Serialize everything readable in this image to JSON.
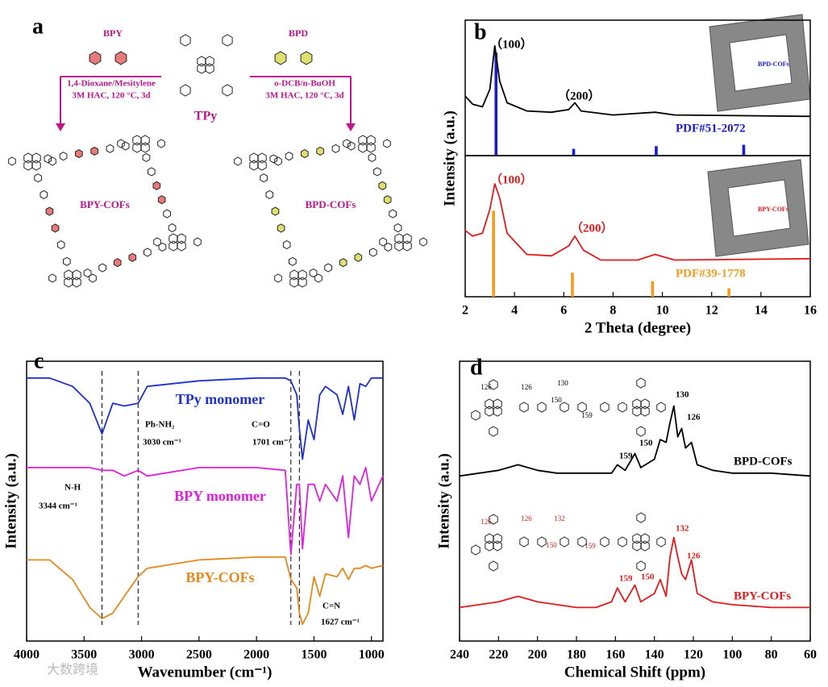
{
  "panels": [
    "a",
    "b",
    "c",
    "d"
  ],
  "scheme": {
    "reagent_left": "BPY",
    "reagent_right": "BPD",
    "center": "TPy",
    "left_conditions": [
      "1,4-Dioxane/Mesitylene",
      "3M HAC, 120 °C, 3d"
    ],
    "right_conditions": [
      "o-DCB/n-BuOH",
      "3M HAC, 120 °C, 3d"
    ],
    "left_product": "BPY-COFs",
    "right_product": "BPD-COFs"
  },
  "watermark": "大数跨境",
  "chart_data": [
    {
      "type": "line",
      "xlim": [
        2,
        16
      ],
      "ylim": [
        0,
        100
      ],
      "x": [
        2,
        2.3,
        2.7,
        3,
        3.2,
        3.4,
        3.7,
        4.5,
        5.5,
        6.2,
        6.45,
        6.7,
        8,
        9.7,
        10.5,
        16
      ],
      "series": [
        {
          "color": "#000000",
          "values": [
            44,
            38,
            36,
            49,
            81,
            55,
            39,
            33,
            32,
            34,
            39,
            33,
            30,
            32,
            30,
            29
          ]
        }
      ],
      "sticks": {
        "color": "#1a1ad6",
        "x": [
          3.25,
          6.4,
          9.75,
          13.3
        ],
        "values": [
          76,
          5,
          7,
          8
        ]
      },
      "annotations": [
        {
          "text": "（100）",
          "color": "#000000"
        },
        {
          "text": "（200）",
          "color": "#000000"
        },
        {
          "text": "PDF#51-2072",
          "color": "#1a1ad6"
        },
        {
          "text": "BPD-COFs",
          "color": "#1a1ad6"
        }
      ]
    },
    {
      "type": "line",
      "xlim": [
        2,
        16
      ],
      "ylim": [
        0,
        100
      ],
      "xticks": [
        2,
        4,
        6,
        8,
        10,
        12,
        14,
        16
      ],
      "xlabel": "2 Theta (degree)",
      "ylabel": "Intensity (a.u.)",
      "x": [
        2,
        2.3,
        2.7,
        3,
        3.2,
        3.4,
        3.7,
        4.5,
        5.5,
        6.2,
        6.45,
        6.8,
        7.5,
        9,
        9.7,
        10.5,
        16
      ],
      "series": [
        {
          "color": "#e31a1c",
          "values": [
            47,
            43,
            45,
            62,
            80,
            70,
            45,
            30,
            29,
            36,
            43,
            33,
            26,
            26,
            30,
            26,
            27
          ]
        }
      ],
      "sticks": {
        "color": "#f39c1e",
        "x": [
          3.15,
          6.35,
          9.6,
          12.7
        ],
        "values": [
          61,
          17,
          11,
          6
        ]
      },
      "annotations": [
        {
          "text": "（100）",
          "color": "#e31a1c"
        },
        {
          "text": "（200）",
          "color": "#e31a1c"
        },
        {
          "text": "PDF#39-1778",
          "color": "#f39c1e"
        },
        {
          "text": "BPY-COFs",
          "color": "#e31a1c"
        }
      ]
    },
    {
      "type": "line",
      "xlim": [
        4000,
        900
      ],
      "ylim": [
        0,
        100
      ],
      "xticks": [
        4000,
        3500,
        3000,
        2500,
        2000,
        1500,
        1000
      ],
      "xlabel": "Wavenumber (cm⁻¹)",
      "ylabel": "Intensity (a.u.)",
      "markers": [
        3344,
        3030,
        1701,
        1627
      ],
      "x": [
        4000,
        3800,
        3600,
        3450,
        3344,
        3250,
        3150,
        3030,
        2950,
        2500,
        2000,
        1750,
        1701,
        1650,
        1627,
        1600,
        1550,
        1500,
        1450,
        1400,
        1300,
        1250,
        1200,
        1150,
        1100,
        1050,
        1000,
        900
      ],
      "series": [
        {
          "color": "#1f2fd0",
          "values": [
            94,
            94,
            91,
            85,
            74,
            85,
            84,
            85,
            91,
            93,
            94,
            94,
            93,
            88,
            76,
            65,
            79,
            72,
            88,
            91,
            88,
            81,
            91,
            79,
            92,
            91,
            94,
            94
          ]
        },
        {
          "color": "#e020e0",
          "values": [
            62,
            62,
            62,
            62,
            61,
            61,
            59,
            61,
            59,
            62,
            62,
            61,
            31,
            56,
            56,
            33,
            56,
            56,
            50,
            56,
            50,
            59,
            37,
            59,
            56,
            62,
            50,
            59
          ]
        },
        {
          "color": "#e8881c",
          "values": [
            29,
            29,
            22,
            12,
            8,
            10,
            16,
            23,
            26,
            29,
            30,
            30,
            22,
            19,
            10,
            6,
            10,
            23,
            16,
            24,
            23,
            26,
            22,
            26,
            26,
            27,
            26,
            27
          ]
        }
      ],
      "annotations": [
        {
          "text": "TPy monomer",
          "color": "#1f2fd0"
        },
        {
          "text": "BPY monomer",
          "color": "#e020e0"
        },
        {
          "text": "BPY-COFs",
          "color": "#e8881c"
        },
        {
          "text": "N-H",
          "color": "#000000"
        },
        {
          "text": "3344 cm⁻¹",
          "color": "#000000"
        },
        {
          "text": "Ph-NH₂",
          "color": "#000000"
        },
        {
          "text": "3030 cm⁻¹",
          "color": "#000000"
        },
        {
          "text": "C=O",
          "color": "#000000"
        },
        {
          "text": "1701 cm⁻¹",
          "color": "#000000"
        },
        {
          "text": "C=N",
          "color": "#000000"
        },
        {
          "text": "1627 cm⁻¹",
          "color": "#000000"
        }
      ]
    },
    {
      "type": "line",
      "xlim": [
        240,
        60
      ],
      "ylim": [
        0,
        100
      ],
      "xticks": [
        240,
        220,
        200,
        180,
        160,
        140,
        120,
        100,
        80,
        60
      ],
      "xlabel": "Chemical Shift (ppm)",
      "ylabel": "Intensity (a.u.)",
      "x": [
        240,
        230,
        220,
        210,
        200,
        190,
        180,
        170,
        162,
        159,
        155,
        150,
        147,
        140,
        137,
        134,
        132,
        130,
        128,
        126,
        124,
        121,
        118,
        110,
        100,
        80,
        60
      ],
      "series": [
        {
          "color": "#000000",
          "values": [
            59,
            60,
            61,
            63,
            61,
            60,
            60,
            60,
            60,
            63,
            61,
            67,
            62,
            65,
            72,
            71,
            78,
            84,
            73,
            76,
            69,
            71,
            63,
            61,
            60,
            60,
            59
          ]
        },
        {
          "color": "#e31a1c",
          "values": [
            12,
            13,
            14,
            16,
            14,
            13,
            12,
            12,
            14,
            19,
            14,
            20,
            14,
            17,
            22,
            16,
            30,
            37,
            30,
            24,
            22,
            29,
            17,
            14,
            13,
            12,
            12
          ]
        }
      ],
      "annotations": [
        {
          "text": "BPD-COFs",
          "color": "#000000"
        },
        {
          "text": "BPY-COFs",
          "color": "#e31a1c"
        },
        {
          "text": "159",
          "color": "#000000"
        },
        {
          "text": "150",
          "color": "#000000"
        },
        {
          "text": "130",
          "color": "#000000"
        },
        {
          "text": "126",
          "color": "#000000"
        },
        {
          "text": "159",
          "color": "#e31a1c"
        },
        {
          "text": "150",
          "color": "#e31a1c"
        },
        {
          "text": "132",
          "color": "#e31a1c"
        },
        {
          "text": "126",
          "color": "#e31a1c"
        }
      ],
      "structure_labels": [
        {
          "text": "126",
          "color": "#000000"
        },
        {
          "text": "126",
          "color": "#000000"
        },
        {
          "text": "150",
          "color": "#000000"
        },
        {
          "text": "130",
          "color": "#000000"
        },
        {
          "text": "159",
          "color": "#000000"
        },
        {
          "text": "126",
          "color": "#e31a1c"
        },
        {
          "text": "126",
          "color": "#e31a1c"
        },
        {
          "text": "132",
          "color": "#e31a1c"
        },
        {
          "text": "150",
          "color": "#e31a1c"
        },
        {
          "text": "159",
          "color": "#e31a1c"
        }
      ]
    }
  ]
}
